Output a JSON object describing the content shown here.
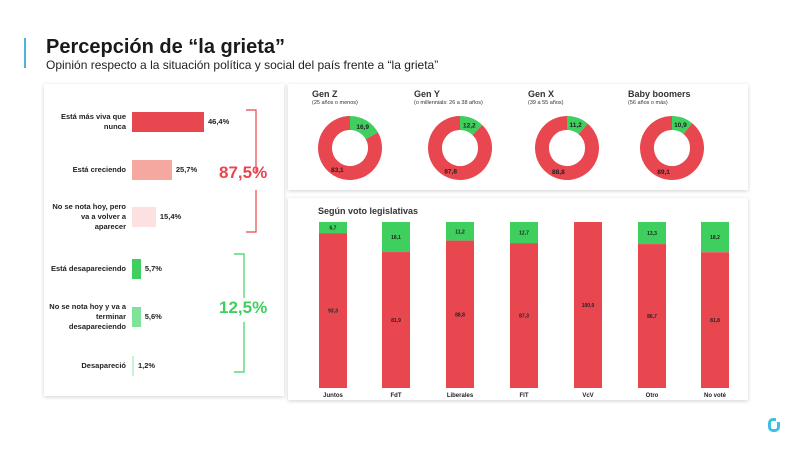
{
  "title": "Percepción de “la grieta”",
  "subtitle": "Opinión respecto a la situación política y social del país frente a “la grieta”",
  "colors": {
    "red": "#e8474f",
    "green": "#3fcf5f",
    "salmon": "#f4a8a0",
    "pale_pink": "#fbe2e0",
    "light_green": "#7fe39a",
    "pale_green": "#c7f3d2",
    "accent": "#4fb3d9"
  },
  "chart_data": [
    {
      "type": "bar",
      "orientation": "horizontal",
      "categories": [
        "Está más viva que nunca",
        "Está creciendo",
        "No se nota hoy, pero va a volver a aparecer",
        "Está desapareciendo",
        "No se nota hoy y va a terminar desapareciendo",
        "Desapareció"
      ],
      "values": [
        46.4,
        25.7,
        15.4,
        5.7,
        5.6,
        1.2
      ],
      "value_labels": [
        "46,4%",
        "25,7%",
        "15,4%",
        "5,7%",
        "5,6%",
        "1,2%"
      ],
      "groups": [
        {
          "total": "87,5%",
          "color": "#e8474f"
        },
        {
          "total": "12,5%",
          "color": "#3fcf5f"
        }
      ]
    },
    {
      "type": "pie",
      "donut": true,
      "charts": [
        {
          "name": "Gen Z",
          "subtitle": "(25 años o menos)",
          "red": 83.1,
          "green": 16.9,
          "red_label": "83,1",
          "green_label": "16,9"
        },
        {
          "name": "Gen Y",
          "subtitle": "(o millennials: 26 a 38 años)",
          "red": 87.8,
          "green": 12.2,
          "red_label": "87,8",
          "green_label": "12,2"
        },
        {
          "name": "Gen X",
          "subtitle": "(39 a 55 años)",
          "red": 88.8,
          "green": 11.2,
          "red_label": "88,8",
          "green_label": "11,2"
        },
        {
          "name": "Baby boomers",
          "subtitle": "(56 años o más)",
          "red": 89.1,
          "green": 10.9,
          "red_label": "89,1",
          "green_label": "10,9"
        }
      ]
    },
    {
      "type": "bar",
      "stacked": true,
      "title": "Según voto legislativas",
      "categories": [
        "Juntos",
        "FdT",
        "Liberales",
        "FIT",
        "VcV",
        "Otro",
        "No voté"
      ],
      "series": [
        {
          "values": [
            93.3,
            81.9,
            88.8,
            87.3,
            100.0,
            86.7,
            81.8
          ],
          "labels": [
            "93,3",
            "81,9",
            "88,8",
            "87,3",
            "100,0",
            "86,7",
            "81,8"
          ],
          "color": "#e8474f"
        },
        {
          "values": [
            6.7,
            18.1,
            11.2,
            12.7,
            0,
            13.3,
            18.2
          ],
          "labels": [
            "6,7",
            "18,1",
            "11,2",
            "12,7",
            "",
            "13,3",
            "18,2"
          ],
          "color": "#3fcf5f"
        }
      ],
      "ylim": [
        0,
        100
      ]
    }
  ]
}
